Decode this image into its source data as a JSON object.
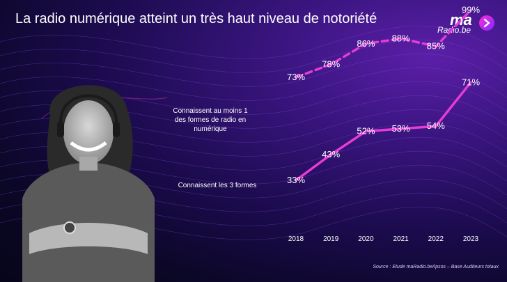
{
  "slide": {
    "title": "La radio numérique atteint un très haut niveau de notoriété",
    "logo_ma": "ma",
    "logo_radio": "Radio.be",
    "source": "Source : Etude maRadio.be/Ipsos – Base Auditeurs totaux"
  },
  "colors": {
    "accent": "#e63bd4",
    "background_dark": "#0b0726",
    "background_purple": "#5b1fa8"
  },
  "chart_data": {
    "type": "line",
    "x": [
      "2018",
      "2019",
      "2020",
      "2021",
      "2022",
      "2023"
    ],
    "ylim": [
      0,
      100
    ],
    "series": [
      {
        "name": "Connaissent au moins 1 des formes de radio en numérique",
        "values": [
          73,
          78,
          86,
          88,
          85,
          99
        ],
        "labels": [
          "73%",
          "78%",
          "86%",
          "88%",
          "85%",
          "99%"
        ],
        "style": "dashed"
      },
      {
        "name": "Connaissent les 3 formes",
        "values": [
          33,
          43,
          52,
          53,
          54,
          71
        ],
        "labels": [
          "33%",
          "43%",
          "52%",
          "53%",
          "54%",
          "71%"
        ],
        "style": "solid"
      }
    ]
  }
}
